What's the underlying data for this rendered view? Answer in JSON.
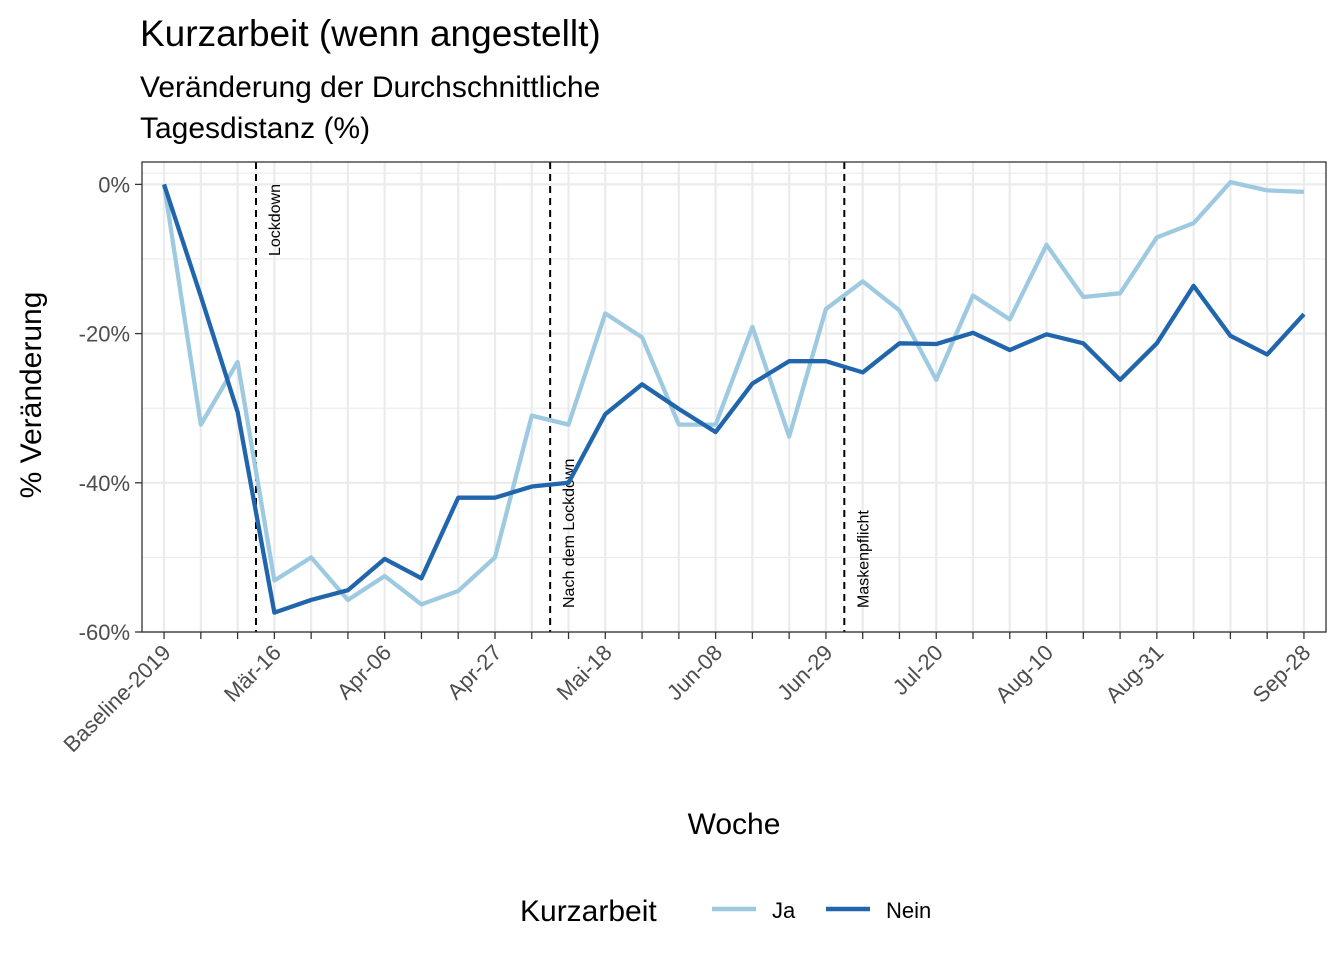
{
  "chart_data": {
    "type": "line",
    "title": "Kurzarbeit (wenn angestellt)",
    "subtitle_lines": [
      "Veränderung der Durchschnittliche",
      "Tagesdistanz (%)"
    ],
    "xlabel": "Woche",
    "ylabel": "% Veränderung",
    "ylim": [
      -60,
      3
    ],
    "y_ticks": [
      0,
      -20,
      -40,
      -60
    ],
    "y_tick_labels": [
      "0%",
      "-20%",
      "-40%",
      "-60%"
    ],
    "x_tick_labels": [
      "Baseline-2019",
      "Mär-16",
      "Apr-06",
      "Apr-27",
      "Mai-18",
      "Jun-08",
      "Jun-29",
      "Jul-20",
      "Aug-10",
      "Aug-31",
      "Sep-28"
    ],
    "x_tick_positions": [
      0,
      3,
      6,
      9,
      12,
      15,
      18,
      21,
      24,
      27,
      31
    ],
    "num_weeks": 32,
    "events": [
      {
        "label": "Lockdown",
        "x": 2.5
      },
      {
        "label": "Nach dem Lockdown",
        "x": 10.5
      },
      {
        "label": "Maskenpflicht",
        "x": 18.5
      }
    ],
    "legend": {
      "title": "Kurzarbeit",
      "position": "bottom"
    },
    "grid": true,
    "series": [
      {
        "name": "Ja",
        "color": "#9ecae1",
        "values": [
          0,
          -32.2,
          -23.8,
          -53.1,
          -50.0,
          -55.7,
          -52.5,
          -56.3,
          -54.5,
          -50.0,
          -31.0,
          -32.2,
          -17.3,
          -20.5,
          -32.2,
          -32.2,
          -19.1,
          -33.8,
          -16.7,
          -13.0,
          -16.9,
          -26.2,
          -14.9,
          -18.1,
          -8.1,
          -15.1,
          -14.6,
          -7.1,
          -5.2,
          0.3,
          -0.8,
          -1.0
        ]
      },
      {
        "name": "Nein",
        "color": "#2166ac",
        "values": [
          0,
          -15.0,
          -30.5,
          -57.4,
          -55.7,
          -54.4,
          -50.2,
          -52.8,
          -42.0,
          -42.0,
          -40.5,
          -40.0,
          -30.8,
          -26.8,
          -30.1,
          -33.2,
          -26.7,
          -23.7,
          -23.7,
          -25.2,
          -21.3,
          -21.4,
          -19.9,
          -22.2,
          -20.1,
          -21.3,
          -26.2,
          -21.3,
          -13.6,
          -20.3,
          -22.8,
          -17.4
        ]
      }
    ]
  }
}
